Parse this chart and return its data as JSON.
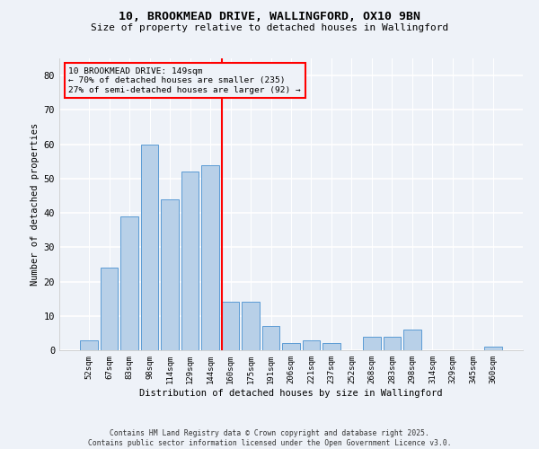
{
  "title1": "10, BROOKMEAD DRIVE, WALLINGFORD, OX10 9BN",
  "title2": "Size of property relative to detached houses in Wallingford",
  "xlabel": "Distribution of detached houses by size in Wallingford",
  "ylabel": "Number of detached properties",
  "categories": [
    "52sqm",
    "67sqm",
    "83sqm",
    "98sqm",
    "114sqm",
    "129sqm",
    "144sqm",
    "160sqm",
    "175sqm",
    "191sqm",
    "206sqm",
    "221sqm",
    "237sqm",
    "252sqm",
    "268sqm",
    "283sqm",
    "298sqm",
    "314sqm",
    "329sqm",
    "345sqm",
    "360sqm"
  ],
  "values": [
    3,
    24,
    39,
    60,
    44,
    52,
    54,
    14,
    14,
    7,
    2,
    3,
    2,
    0,
    4,
    4,
    6,
    0,
    0,
    0,
    1
  ],
  "bar_color": "#b8d0e8",
  "bar_edge_color": "#5b9bd5",
  "redline_index": 7,
  "annotation_title": "10 BROOKMEAD DRIVE: 149sqm",
  "annotation_line1": "← 70% of detached houses are smaller (235)",
  "annotation_line2": "27% of semi-detached houses are larger (92) →",
  "ylim": [
    0,
    85
  ],
  "yticks": [
    0,
    10,
    20,
    30,
    40,
    50,
    60,
    70,
    80
  ],
  "footer1": "Contains HM Land Registry data © Crown copyright and database right 2025.",
  "footer2": "Contains public sector information licensed under the Open Government Licence v3.0.",
  "bg_color": "#eef2f8"
}
